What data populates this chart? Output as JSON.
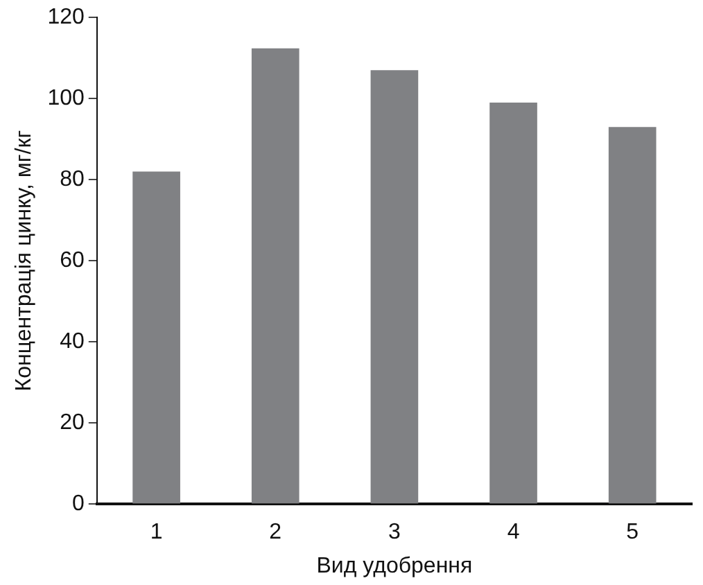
{
  "chart_data": {
    "type": "bar",
    "xlabel": "Вид удобрення",
    "ylabel": "Концентрація цинку, мг/кг",
    "categories": [
      "1",
      "2",
      "3",
      "4",
      "5"
    ],
    "values": [
      82,
      112.4,
      107,
      99,
      93
    ],
    "color": "#808184",
    "ylim": [
      0,
      120
    ],
    "yticks": [
      0,
      20,
      40,
      60,
      80,
      100,
      120
    ],
    "grid": false,
    "legend": false
  }
}
